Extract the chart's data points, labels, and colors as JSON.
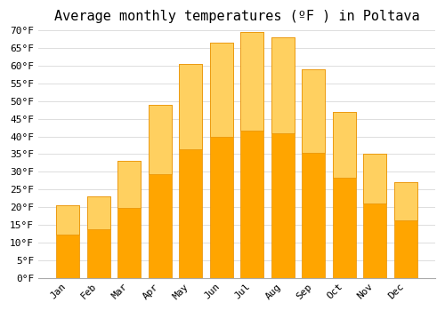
{
  "title": "Average monthly temperatures (ºF ) in Poltava",
  "months": [
    "Jan",
    "Feb",
    "Mar",
    "Apr",
    "May",
    "Jun",
    "Jul",
    "Aug",
    "Sep",
    "Oct",
    "Nov",
    "Dec"
  ],
  "values": [
    20.5,
    23,
    33,
    49,
    60.5,
    66.5,
    69.5,
    68,
    59,
    47,
    35,
    27
  ],
  "bar_color": "#FFA500",
  "bar_color_top": "#FFD060",
  "bar_edge_color": "#E89000",
  "background_color": "#FFFFFF",
  "grid_color": "#DDDDDD",
  "ylim": [
    0,
    70
  ],
  "ytick_step": 5,
  "title_fontsize": 11,
  "tick_fontsize": 8,
  "tick_font_family": "monospace"
}
